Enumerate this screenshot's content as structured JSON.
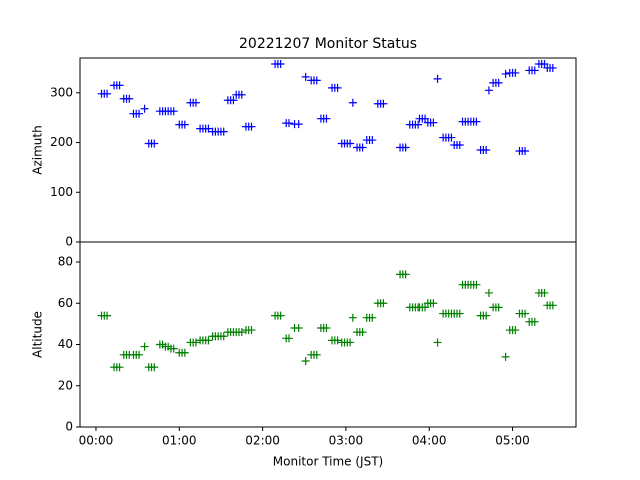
{
  "chart_data": [
    {
      "type": "scatter",
      "title": "20221207 Monitor Status",
      "ylabel": "Azimuth",
      "color": "#0000ff",
      "x": [
        4,
        6,
        8,
        13,
        15,
        17,
        20,
        22,
        24,
        27,
        29,
        31,
        35,
        38,
        40,
        42,
        46,
        48,
        50,
        52,
        54,
        56,
        60,
        62,
        64,
        68,
        70,
        72,
        75,
        77,
        79,
        81,
        84,
        86,
        88,
        90,
        92,
        95,
        97,
        99,
        101,
        103,
        105,
        108,
        110,
        112,
        129,
        131,
        133,
        137,
        139,
        143,
        146,
        151,
        155,
        157,
        159,
        162,
        164,
        166,
        170,
        172,
        174,
        177,
        179,
        181,
        183,
        185,
        188,
        190,
        192,
        195,
        197,
        199,
        203,
        205,
        207,
        219,
        221,
        223,
        226,
        228,
        230,
        232,
        233,
        235,
        237,
        239,
        241,
        243,
        246,
        250,
        252,
        254,
        256,
        258,
        260,
        262,
        264,
        266,
        268,
        270,
        272,
        274,
        277,
        279,
        281,
        283,
        286,
        288,
        290,
        295,
        298,
        300,
        302,
        305,
        307,
        309,
        312,
        314,
        316,
        319,
        321,
        323,
        325,
        327,
        329
      ],
      "values": [
        298,
        298,
        298,
        315,
        315,
        315,
        288,
        288,
        288,
        258,
        258,
        258,
        268,
        198,
        198,
        198,
        263,
        263,
        263,
        263,
        263,
        263,
        236,
        236,
        236,
        280,
        280,
        280,
        228,
        228,
        228,
        228,
        222,
        222,
        222,
        222,
        222,
        285,
        285,
        285,
        296,
        296,
        296,
        232,
        232,
        232,
        358,
        358,
        358,
        239,
        239,
        237,
        237,
        332,
        325,
        325,
        325,
        248,
        248,
        248,
        310,
        310,
        310,
        198,
        198,
        198,
        198,
        280,
        190,
        190,
        190,
        205,
        205,
        205,
        278,
        278,
        278,
        190,
        190,
        190,
        236,
        236,
        236,
        236,
        248,
        248,
        248,
        240,
        240,
        240,
        328,
        210,
        210,
        210,
        210,
        195,
        195,
        195,
        242,
        242,
        242,
        242,
        242,
        242,
        185,
        185,
        185,
        305,
        320,
        320,
        320,
        338,
        340,
        340,
        340,
        183,
        183,
        183,
        345,
        345,
        345,
        358,
        358,
        358,
        350,
        350,
        350
      ],
      "xlim": [
        -11.5,
        345.7
      ],
      "ylim": [
        0,
        370
      ],
      "yticks": [
        0,
        100,
        200,
        300
      ]
    },
    {
      "type": "scatter",
      "ylabel": "Altitude",
      "xlabel": "Monitor Time (JST)",
      "color": "#008000",
      "x": [
        4,
        6,
        8,
        13,
        15,
        17,
        20,
        22,
        24,
        27,
        29,
        31,
        35,
        38,
        40,
        42,
        46,
        48,
        50,
        52,
        54,
        56,
        60,
        62,
        64,
        68,
        70,
        72,
        75,
        77,
        79,
        81,
        84,
        86,
        88,
        90,
        92,
        95,
        97,
        99,
        101,
        103,
        105,
        108,
        110,
        112,
        129,
        131,
        133,
        137,
        139,
        143,
        146,
        151,
        155,
        157,
        159,
        162,
        164,
        166,
        170,
        172,
        174,
        177,
        179,
        181,
        183,
        185,
        188,
        190,
        192,
        195,
        197,
        199,
        203,
        205,
        207,
        219,
        221,
        223,
        226,
        228,
        230,
        232,
        233,
        235,
        237,
        239,
        241,
        243,
        246,
        250,
        252,
        254,
        256,
        258,
        260,
        262,
        264,
        266,
        268,
        270,
        272,
        274,
        277,
        279,
        281,
        283,
        286,
        288,
        290,
        295,
        298,
        300,
        302,
        305,
        307,
        309,
        312,
        314,
        316,
        319,
        321,
        323,
        325,
        327,
        329
      ],
      "values": [
        54,
        54,
        54,
        29,
        29,
        29,
        35,
        35,
        35,
        35,
        35,
        35,
        39,
        29,
        29,
        29,
        40,
        40,
        39,
        39,
        38,
        38,
        36,
        36,
        36,
        41,
        41,
        41,
        42,
        42,
        42,
        42,
        44,
        44,
        44,
        44,
        44,
        46,
        46,
        46,
        46,
        46,
        46,
        47,
        47,
        47,
        54,
        54,
        54,
        43,
        43,
        48,
        48,
        32,
        35,
        35,
        35,
        48,
        48,
        48,
        42,
        42,
        42,
        41,
        41,
        41,
        41,
        53,
        46,
        46,
        46,
        53,
        53,
        53,
        60,
        60,
        60,
        74,
        74,
        74,
        58,
        58,
        58,
        58,
        58,
        58,
        58,
        60,
        60,
        60,
        41,
        55,
        55,
        55,
        55,
        55,
        55,
        55,
        69,
        69,
        69,
        69,
        69,
        69,
        54,
        54,
        54,
        65,
        58,
        58,
        58,
        34,
        47,
        47,
        47,
        55,
        55,
        55,
        51,
        51,
        51,
        65,
        65,
        65,
        59,
        59,
        59
      ],
      "xlim": [
        -11.5,
        345.7
      ],
      "ylim": [
        0,
        89.7
      ],
      "yticks": [
        0,
        20,
        40,
        60,
        80
      ],
      "xticks": [
        {
          "value": 0,
          "label": "00:00"
        },
        {
          "value": 60,
          "label": "01:00"
        },
        {
          "value": 120,
          "label": "02:00"
        },
        {
          "value": 180,
          "label": "03:00"
        },
        {
          "value": 240,
          "label": "04:00"
        },
        {
          "value": 300,
          "label": "05:00"
        }
      ]
    }
  ]
}
